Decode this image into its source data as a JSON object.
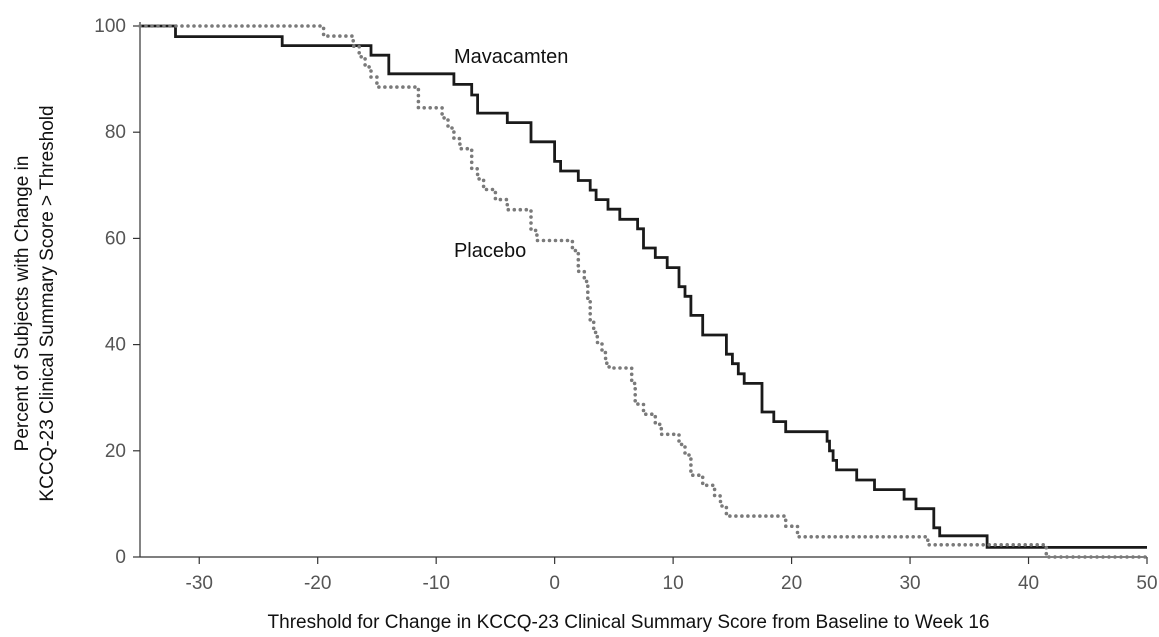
{
  "chart_data": {
    "type": "line",
    "title": "",
    "xlabel": "Threshold for Change in KCCQ-23 Clinical Summary Score from Baseline to Week 16",
    "ylabel_lines": [
      "Percent of Subjects with Change in",
      "KCCQ-23 Clinical Summary Score > Threshold"
    ],
    "xlim": [
      -35,
      50
    ],
    "ylim": [
      0,
      100
    ],
    "x_ticks": [
      -30,
      -20,
      -10,
      0,
      10,
      20,
      30,
      40,
      50
    ],
    "y_ticks": [
      0,
      20,
      40,
      60,
      80,
      100
    ],
    "grid": false,
    "legend": "none",
    "series": [
      {
        "name": "Mavacamten",
        "style": "solid",
        "color": "#1a1a1a",
        "label_at": [
          -8.5,
          93
        ],
        "points": [
          [
            -35,
            100
          ],
          [
            -32,
            100
          ],
          [
            -32,
            98
          ],
          [
            -23,
            98
          ],
          [
            -23,
            96.3
          ],
          [
            -15.5,
            96.3
          ],
          [
            -15.5,
            94.5
          ],
          [
            -14,
            94.5
          ],
          [
            -14,
            91
          ],
          [
            -8.5,
            91
          ],
          [
            -8.5,
            89
          ],
          [
            -7,
            89
          ],
          [
            -7,
            87
          ],
          [
            -6.5,
            87
          ],
          [
            -6.5,
            83.6
          ],
          [
            -4,
            83.6
          ],
          [
            -4,
            81.8
          ],
          [
            -2,
            81.8
          ],
          [
            -2,
            78.2
          ],
          [
            0,
            78.2
          ],
          [
            0,
            74.5
          ],
          [
            0.5,
            74.5
          ],
          [
            0.5,
            72.7
          ],
          [
            2,
            72.7
          ],
          [
            2,
            70.9
          ],
          [
            3,
            70.9
          ],
          [
            3,
            69.1
          ],
          [
            3.5,
            69.1
          ],
          [
            3.5,
            67.3
          ],
          [
            4.5,
            67.3
          ],
          [
            4.5,
            65.5
          ],
          [
            5.5,
            65.5
          ],
          [
            5.5,
            63.6
          ],
          [
            7,
            63.6
          ],
          [
            7,
            61.8
          ],
          [
            7.5,
            61.8
          ],
          [
            7.5,
            58.2
          ],
          [
            8.5,
            58.2
          ],
          [
            8.5,
            56.4
          ],
          [
            9.5,
            56.4
          ],
          [
            9.5,
            54.5
          ],
          [
            10.5,
            54.5
          ],
          [
            10.5,
            50.9
          ],
          [
            11,
            50.9
          ],
          [
            11,
            49.1
          ],
          [
            11.5,
            49.1
          ],
          [
            11.5,
            45.5
          ],
          [
            12.5,
            45.5
          ],
          [
            12.5,
            41.8
          ],
          [
            14.5,
            41.8
          ],
          [
            14.5,
            38.2
          ],
          [
            15,
            38.2
          ],
          [
            15,
            36.4
          ],
          [
            15.5,
            36.4
          ],
          [
            15.5,
            34.5
          ],
          [
            16,
            34.5
          ],
          [
            16,
            32.7
          ],
          [
            17.5,
            32.7
          ],
          [
            17.5,
            27.3
          ],
          [
            18.5,
            27.3
          ],
          [
            18.5,
            25.5
          ],
          [
            19.5,
            25.5
          ],
          [
            19.5,
            23.6
          ],
          [
            23,
            23.6
          ],
          [
            23,
            21.8
          ],
          [
            23.2,
            21.8
          ],
          [
            23.2,
            20
          ],
          [
            23.5,
            20
          ],
          [
            23.5,
            18.2
          ],
          [
            23.8,
            18.2
          ],
          [
            23.8,
            16.4
          ],
          [
            25.5,
            16.4
          ],
          [
            25.5,
            14.5
          ],
          [
            27,
            14.5
          ],
          [
            27,
            12.7
          ],
          [
            29.5,
            12.7
          ],
          [
            29.5,
            10.9
          ],
          [
            30.5,
            10.9
          ],
          [
            30.5,
            9.1
          ],
          [
            32,
            9.1
          ],
          [
            32,
            5.5
          ],
          [
            32.5,
            5.5
          ],
          [
            32.5,
            4
          ],
          [
            36.5,
            4
          ],
          [
            36.5,
            1.8
          ],
          [
            50,
            1.8
          ]
        ]
      },
      {
        "name": "Placebo",
        "style": "dotted",
        "color": "#7a7a7a",
        "label_at": [
          -8.5,
          56.5
        ],
        "points": [
          [
            -35,
            100
          ],
          [
            -19.5,
            100
          ],
          [
            -19.5,
            98.1
          ],
          [
            -17,
            98.1
          ],
          [
            -17,
            96.2
          ],
          [
            -16.5,
            96.2
          ],
          [
            -16.5,
            94.2
          ],
          [
            -16,
            94.2
          ],
          [
            -16,
            92.3
          ],
          [
            -15.5,
            92.3
          ],
          [
            -15.5,
            90.4
          ],
          [
            -15,
            90.4
          ],
          [
            -15,
            88.5
          ],
          [
            -11.5,
            88.5
          ],
          [
            -11.5,
            84.6
          ],
          [
            -9.5,
            84.6
          ],
          [
            -9.5,
            82.7
          ],
          [
            -9,
            82.7
          ],
          [
            -9,
            80.8
          ],
          [
            -8.5,
            80.8
          ],
          [
            -8.5,
            78.8
          ],
          [
            -8,
            78.8
          ],
          [
            -8,
            76.9
          ],
          [
            -7,
            76.9
          ],
          [
            -7,
            73.1
          ],
          [
            -6.5,
            73.1
          ],
          [
            -6.5,
            71.2
          ],
          [
            -6,
            71.2
          ],
          [
            -6,
            69.2
          ],
          [
            -5,
            69.2
          ],
          [
            -5,
            67.3
          ],
          [
            -4,
            67.3
          ],
          [
            -4,
            65.4
          ],
          [
            -2,
            65.4
          ],
          [
            -2,
            61.5
          ],
          [
            -1.5,
            61.5
          ],
          [
            -1.5,
            59.6
          ],
          [
            1.5,
            59.6
          ],
          [
            1.5,
            57.7
          ],
          [
            2,
            57.7
          ],
          [
            2,
            53.8
          ],
          [
            2.5,
            53.8
          ],
          [
            2.5,
            51.9
          ],
          [
            2.8,
            51.9
          ],
          [
            2.8,
            48.1
          ],
          [
            3,
            48.1
          ],
          [
            3,
            44.2
          ],
          [
            3.3,
            44.2
          ],
          [
            3.3,
            42.3
          ],
          [
            3.6,
            42.3
          ],
          [
            3.6,
            40.4
          ],
          [
            4,
            40.4
          ],
          [
            4,
            38.5
          ],
          [
            4.3,
            38.5
          ],
          [
            4.3,
            36.5
          ],
          [
            4.6,
            36.5
          ],
          [
            4.6,
            35.6
          ],
          [
            6.5,
            35.6
          ],
          [
            6.5,
            32.7
          ],
          [
            6.8,
            32.7
          ],
          [
            6.8,
            28.8
          ],
          [
            7.5,
            28.8
          ],
          [
            7.5,
            26.9
          ],
          [
            8.5,
            26.9
          ],
          [
            8.5,
            25
          ],
          [
            9,
            25
          ],
          [
            9,
            23.1
          ],
          [
            10.5,
            23.1
          ],
          [
            10.5,
            21.2
          ],
          [
            11,
            21.2
          ],
          [
            11,
            19.2
          ],
          [
            11.5,
            19.2
          ],
          [
            11.5,
            15.4
          ],
          [
            12.5,
            15.4
          ],
          [
            12.5,
            13.5
          ],
          [
            13.5,
            13.5
          ],
          [
            13.5,
            11.5
          ],
          [
            14,
            11.5
          ],
          [
            14,
            9.6
          ],
          [
            14.5,
            9.6
          ],
          [
            14.5,
            7.7
          ],
          [
            19.5,
            7.7
          ],
          [
            19.5,
            5.8
          ],
          [
            20.5,
            5.8
          ],
          [
            20.5,
            3.8
          ],
          [
            31.5,
            3.8
          ],
          [
            31.5,
            2.3
          ],
          [
            41.5,
            2.3
          ],
          [
            41.5,
            0
          ],
          [
            50,
            0
          ]
        ]
      }
    ]
  }
}
